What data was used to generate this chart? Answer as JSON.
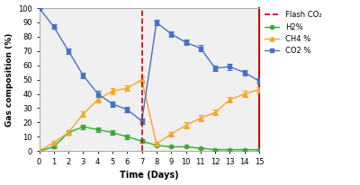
{
  "days": [
    0,
    1,
    2,
    3,
    4,
    5,
    6,
    7,
    8,
    9,
    10,
    11,
    12,
    13,
    14,
    15
  ],
  "H2": [
    0,
    3,
    13,
    17,
    15,
    13,
    10,
    7,
    4,
    3,
    3,
    2,
    1,
    1,
    1,
    1
  ],
  "H2_err": [
    0.3,
    1,
    1.5,
    1.5,
    1.5,
    1.5,
    1.5,
    1.5,
    1,
    0.5,
    0.5,
    0.5,
    0.5,
    0.5,
    0.5,
    0.5
  ],
  "CH4": [
    0,
    6,
    13,
    26,
    36,
    42,
    44,
    50,
    5,
    12,
    18,
    23,
    27,
    36,
    40,
    43
  ],
  "CH4_err": [
    0.3,
    1,
    1.5,
    2,
    2,
    2,
    2,
    2,
    1.5,
    1.5,
    2,
    2,
    2,
    2,
    2,
    2
  ],
  "CO2": [
    100,
    87,
    70,
    53,
    40,
    33,
    29,
    21,
    90,
    82,
    76,
    72,
    58,
    59,
    55,
    49
  ],
  "CO2_err": [
    0.3,
    1.5,
    2,
    2,
    2,
    2,
    2,
    2,
    2,
    2,
    2,
    2,
    2,
    2,
    2,
    2
  ],
  "flash_x": 7,
  "H2_color": "#3aaa35",
  "CH4_color": "#f5a623",
  "CO2_color": "#4472c4",
  "flash_color": "#cc0000",
  "spine_color": "#cc0000",
  "ylabel": "Gas composition (%)",
  "xlabel": "Time (Days)",
  "ylim": [
    0,
    100
  ],
  "xlim": [
    0,
    15
  ],
  "yticks": [
    0,
    10,
    20,
    30,
    40,
    50,
    60,
    70,
    80,
    90,
    100
  ],
  "xticks": [
    0,
    1,
    2,
    3,
    4,
    5,
    6,
    7,
    8,
    9,
    10,
    11,
    12,
    13,
    14,
    15
  ],
  "legend_labels": [
    "Flash CO₂",
    "H2%",
    "CH4 %",
    "CO2 %"
  ],
  "bg_color": "#ffffff",
  "plot_bg": "#f0f0f0"
}
